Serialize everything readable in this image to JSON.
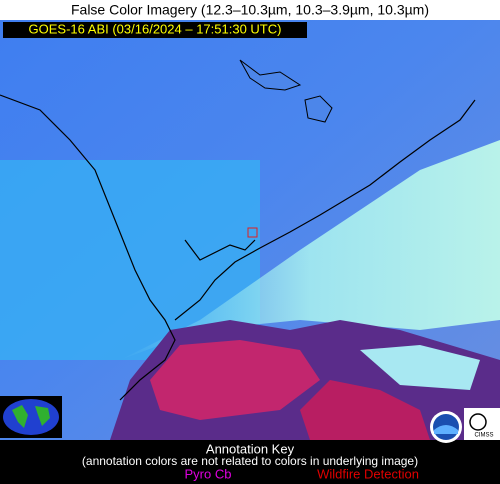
{
  "header": {
    "title": "False Color Imagery (12.3–10.3µm, 10.3–3.9µm, 10.3µm)",
    "product": "GOES-16 ABI (03/16/2024 – 17:51:30 UTC)"
  },
  "key": {
    "title": "Annotation Key",
    "note": "(annotation colors are not related to colors in underlying image)",
    "pyro": "Pyro Cb",
    "wildfire": "Wildfire Detection"
  },
  "logos": {
    "cimss": "CIMSS"
  }
}
